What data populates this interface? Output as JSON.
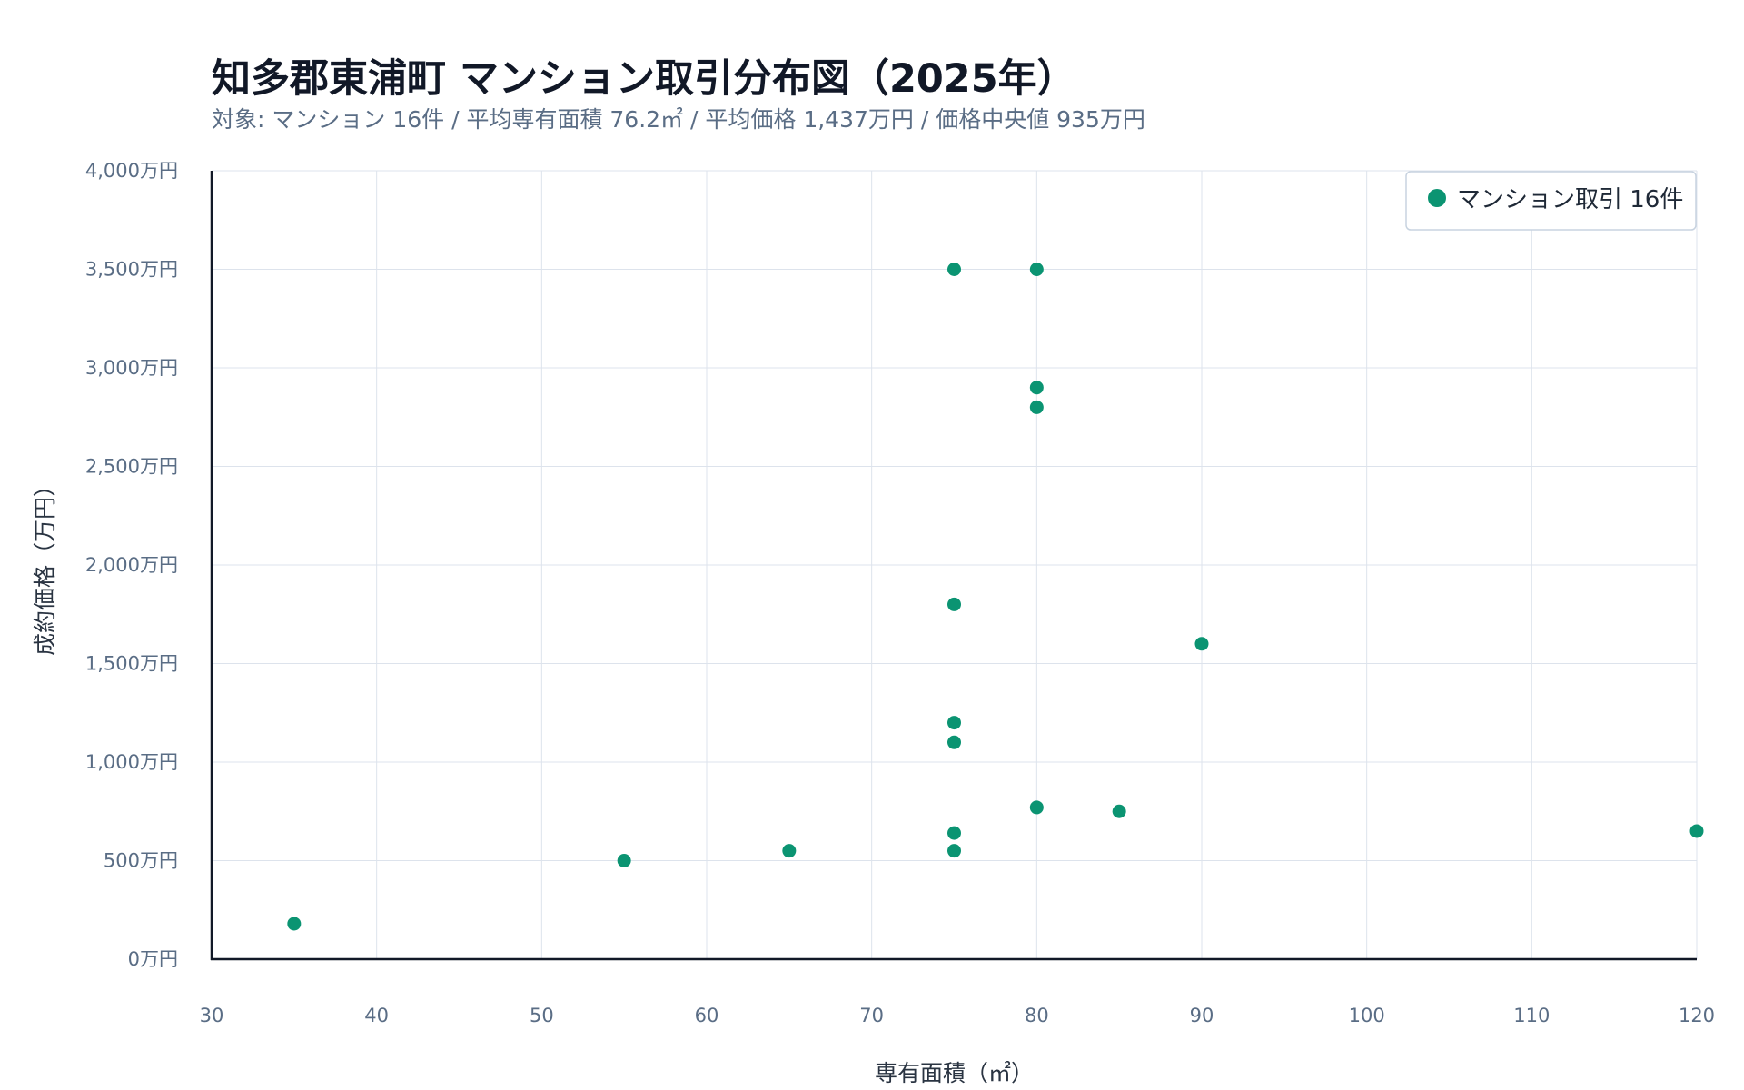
{
  "chart_data": {
    "type": "scatter",
    "title": "知多郡東浦町 マンション取引分布図（2025年）",
    "subtitle": "対象: マンション 16件 / 平均専有面積 76.2㎡ / 平均価格 1,437万円 / 価格中央値 935万円",
    "xlabel": "専有面積（㎡）",
    "ylabel": "成約価格（万円）",
    "xlim": [
      30,
      120
    ],
    "ylim": [
      0,
      4000
    ],
    "x_ticks": [
      30,
      40,
      50,
      60,
      70,
      80,
      90,
      100,
      110,
      120
    ],
    "x_tick_labels": [
      "30",
      "40",
      "50",
      "60",
      "70",
      "80",
      "90",
      "100",
      "110",
      "120"
    ],
    "y_ticks": [
      0,
      500,
      1000,
      1500,
      2000,
      2500,
      3000,
      3500,
      4000
    ],
    "y_tick_labels": [
      "0万円",
      "500万円",
      "1,000万円",
      "1,500万円",
      "2,000万円",
      "2,500万円",
      "3,000万円",
      "3,500万円",
      "4,000万円"
    ],
    "grid": true,
    "legend_position": "top-right",
    "series": [
      {
        "name": "マンション取引 16件",
        "color": "#0b9472",
        "points": [
          {
            "x": 35,
            "y": 180
          },
          {
            "x": 55,
            "y": 500
          },
          {
            "x": 65,
            "y": 550
          },
          {
            "x": 75,
            "y": 3500
          },
          {
            "x": 75,
            "y": 1800
          },
          {
            "x": 75,
            "y": 1200
          },
          {
            "x": 75,
            "y": 1100
          },
          {
            "x": 75,
            "y": 640
          },
          {
            "x": 75,
            "y": 550
          },
          {
            "x": 80,
            "y": 3500
          },
          {
            "x": 80,
            "y": 2900
          },
          {
            "x": 80,
            "y": 2800
          },
          {
            "x": 80,
            "y": 770
          },
          {
            "x": 85,
            "y": 750
          },
          {
            "x": 90,
            "y": 1600
          },
          {
            "x": 120,
            "y": 650
          }
        ]
      }
    ]
  },
  "colors": {
    "grid": "#dde3ec",
    "axis": "#111827",
    "legend_border": "#c8d3e0"
  }
}
